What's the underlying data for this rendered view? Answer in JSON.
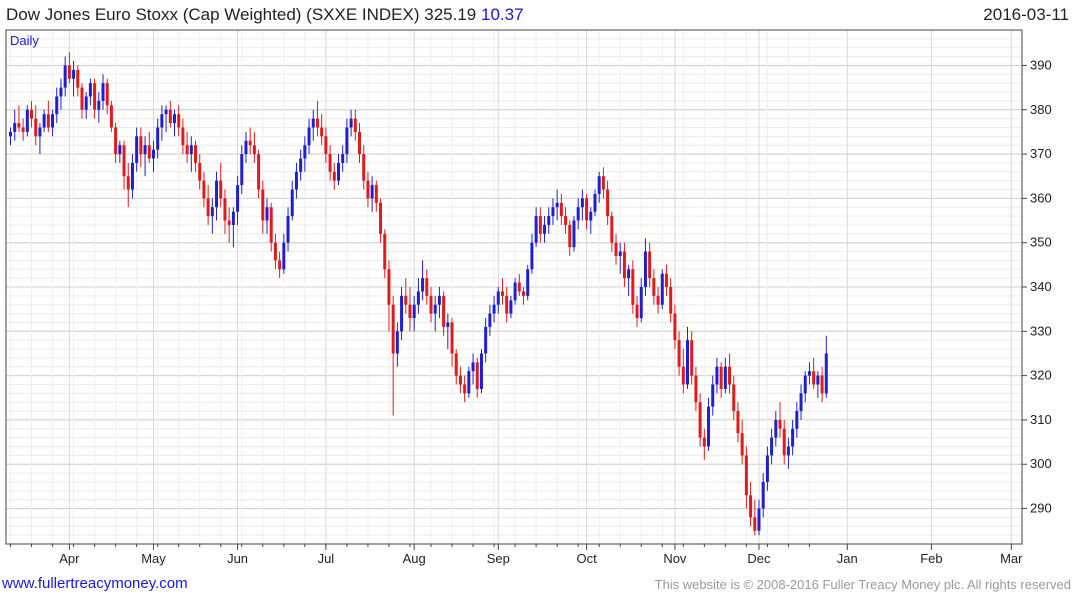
{
  "header": {
    "title": "Dow Jones Euro Stoxx (Cap Weighted)  (SXXE INDEX)",
    "last": "325.19",
    "change": "10.37",
    "date": "2016-03-11"
  },
  "footer": {
    "left": "www.fullertreacymoney.com",
    "right": "This website is © 2008-2016 Fuller Treacy Money plc. All rights reserved"
  },
  "colors": {
    "up": "#1f1fcf",
    "down": "#e01b1b",
    "grid": "#dddddd",
    "axis": "#444444"
  },
  "chart_data": {
    "type": "candlestick",
    "periodicity_label": "Daily",
    "y_ticks": [
      290,
      300,
      310,
      320,
      330,
      340,
      350,
      360,
      370,
      380,
      390
    ],
    "ylim": [
      282,
      398
    ],
    "x_axis_position": "bottom",
    "y_axis_position": "right",
    "grid": true,
    "months": [
      {
        "label": "Apr",
        "index": 14
      },
      {
        "label": "May",
        "index": 34
      },
      {
        "label": "Jun",
        "index": 54
      },
      {
        "label": "Jul",
        "index": 75
      },
      {
        "label": "Aug",
        "index": 96
      },
      {
        "label": "Sep",
        "index": 116
      },
      {
        "label": "Oct",
        "index": 137
      },
      {
        "label": "Nov",
        "index": 158
      },
      {
        "label": "Dec",
        "index": 178
      },
      {
        "label": "Jan",
        "index": 199
      },
      {
        "label": "Feb",
        "index": 219
      },
      {
        "label": "Mar",
        "index": 238
      }
    ],
    "ohlc": [
      [
        374,
        376,
        372,
        375
      ],
      [
        375,
        380,
        373,
        377
      ],
      [
        377,
        381,
        375,
        376
      ],
      [
        376,
        378,
        373,
        375
      ],
      [
        375,
        381,
        374,
        380
      ],
      [
        380,
        382,
        376,
        378
      ],
      [
        378,
        381,
        372,
        374
      ],
      [
        374,
        377,
        370,
        376
      ],
      [
        376,
        380,
        375,
        379
      ],
      [
        379,
        382,
        375,
        376
      ],
      [
        376,
        380,
        374,
        379
      ],
      [
        379,
        385,
        377,
        383
      ],
      [
        383,
        387,
        380,
        385
      ],
      [
        385,
        392,
        383,
        390
      ],
      [
        390,
        393,
        386,
        387
      ],
      [
        387,
        391,
        383,
        389
      ],
      [
        389,
        390,
        383,
        385
      ],
      [
        385,
        386,
        378,
        380
      ],
      [
        380,
        384,
        378,
        383
      ],
      [
        383,
        387,
        381,
        386
      ],
      [
        386,
        387,
        378,
        380
      ],
      [
        380,
        384,
        377,
        382
      ],
      [
        382,
        388,
        380,
        386
      ],
      [
        386,
        387,
        379,
        381
      ],
      [
        381,
        382,
        375,
        376
      ],
      [
        376,
        377,
        368,
        370
      ],
      [
        370,
        373,
        368,
        372
      ],
      [
        372,
        373,
        362,
        365
      ],
      [
        365,
        368,
        358,
        362
      ],
      [
        362,
        370,
        360,
        368
      ],
      [
        368,
        376,
        366,
        374
      ],
      [
        374,
        376,
        367,
        370
      ],
      [
        370,
        374,
        365,
        372
      ],
      [
        372,
        375,
        368,
        369
      ],
      [
        369,
        373,
        366,
        371
      ],
      [
        371,
        378,
        369,
        376
      ],
      [
        376,
        381,
        373,
        379
      ],
      [
        379,
        381,
        375,
        380
      ],
      [
        380,
        382,
        376,
        377
      ],
      [
        377,
        380,
        374,
        379
      ],
      [
        379,
        381,
        374,
        376
      ],
      [
        376,
        378,
        370,
        372
      ],
      [
        372,
        375,
        368,
        370
      ],
      [
        370,
        374,
        366,
        372
      ],
      [
        372,
        373,
        366,
        368
      ],
      [
        368,
        370,
        362,
        364
      ],
      [
        364,
        366,
        358,
        360
      ],
      [
        360,
        363,
        354,
        356
      ],
      [
        356,
        360,
        352,
        358
      ],
      [
        358,
        366,
        355,
        364
      ],
      [
        364,
        368,
        358,
        360
      ],
      [
        360,
        362,
        352,
        355
      ],
      [
        355,
        358,
        350,
        354
      ],
      [
        354,
        358,
        349,
        357
      ],
      [
        357,
        365,
        354,
        363
      ],
      [
        363,
        372,
        361,
        370
      ],
      [
        370,
        375,
        368,
        373
      ],
      [
        373,
        376,
        370,
        372
      ],
      [
        372,
        375,
        368,
        370
      ],
      [
        370,
        371,
        360,
        362
      ],
      [
        362,
        364,
        352,
        355
      ],
      [
        355,
        360,
        352,
        358
      ],
      [
        358,
        359,
        348,
        350
      ],
      [
        350,
        352,
        344,
        346
      ],
      [
        346,
        348,
        342,
        344
      ],
      [
        344,
        352,
        343,
        350
      ],
      [
        350,
        358,
        348,
        356
      ],
      [
        356,
        364,
        355,
        362
      ],
      [
        362,
        368,
        360,
        366
      ],
      [
        366,
        371,
        364,
        369
      ],
      [
        369,
        374,
        366,
        372
      ],
      [
        372,
        378,
        370,
        376
      ],
      [
        376,
        380,
        373,
        378
      ],
      [
        378,
        382,
        374,
        376
      ],
      [
        376,
        379,
        372,
        374
      ],
      [
        374,
        376,
        368,
        370
      ],
      [
        370,
        372,
        364,
        366
      ],
      [
        366,
        368,
        362,
        364
      ],
      [
        364,
        370,
        363,
        368
      ],
      [
        368,
        372,
        366,
        370
      ],
      [
        370,
        378,
        368,
        376
      ],
      [
        376,
        380,
        374,
        378
      ],
      [
        378,
        380,
        373,
        375
      ],
      [
        375,
        377,
        368,
        370
      ],
      [
        370,
        372,
        362,
        364
      ],
      [
        364,
        366,
        358,
        360
      ],
      [
        360,
        365,
        357,
        363
      ],
      [
        363,
        364,
        357,
        359
      ],
      [
        359,
        360,
        350,
        352
      ],
      [
        352,
        353,
        342,
        344
      ],
      [
        344,
        346,
        330,
        336
      ],
      [
        336,
        338,
        311,
        325
      ],
      [
        325,
        332,
        322,
        330
      ],
      [
        330,
        340,
        328,
        338
      ],
      [
        338,
        342,
        334,
        336
      ],
      [
        336,
        340,
        330,
        333
      ],
      [
        333,
        338,
        330,
        336
      ],
      [
        336,
        342,
        334,
        339
      ],
      [
        339,
        346,
        337,
        342
      ],
      [
        342,
        344,
        336,
        338
      ],
      [
        338,
        340,
        332,
        334
      ],
      [
        334,
        338,
        330,
        336
      ],
      [
        336,
        340,
        333,
        338
      ],
      [
        338,
        339,
        329,
        331
      ],
      [
        331,
        334,
        326,
        332
      ],
      [
        332,
        333,
        322,
        325
      ],
      [
        325,
        326,
        318,
        320
      ],
      [
        320,
        322,
        316,
        318
      ],
      [
        318,
        320,
        314,
        316
      ],
      [
        316,
        322,
        315,
        321
      ],
      [
        321,
        325,
        318,
        323
      ],
      [
        323,
        324,
        315,
        317
      ],
      [
        317,
        326,
        316,
        325
      ],
      [
        325,
        333,
        323,
        331
      ],
      [
        331,
        336,
        329,
        334
      ],
      [
        334,
        338,
        332,
        336
      ],
      [
        336,
        340,
        334,
        339
      ],
      [
        339,
        342,
        336,
        338
      ],
      [
        338,
        340,
        332,
        334
      ],
      [
        334,
        338,
        333,
        337
      ],
      [
        337,
        342,
        336,
        341
      ],
      [
        341,
        343,
        338,
        339
      ],
      [
        339,
        340,
        336,
        338
      ],
      [
        338,
        345,
        337,
        344
      ],
      [
        344,
        352,
        343,
        350
      ],
      [
        350,
        358,
        349,
        356
      ],
      [
        356,
        358,
        350,
        352
      ],
      [
        352,
        356,
        350,
        354
      ],
      [
        354,
        358,
        352,
        356
      ],
      [
        356,
        360,
        354,
        358
      ],
      [
        358,
        362,
        355,
        359
      ],
      [
        359,
        361,
        354,
        356
      ],
      [
        356,
        358,
        352,
        354
      ],
      [
        354,
        355,
        347,
        349
      ],
      [
        349,
        356,
        348,
        355
      ],
      [
        355,
        360,
        353,
        358
      ],
      [
        358,
        362,
        355,
        360
      ],
      [
        360,
        361,
        353,
        355
      ],
      [
        355,
        358,
        352,
        357
      ],
      [
        357,
        362,
        356,
        361
      ],
      [
        361,
        366,
        359,
        365
      ],
      [
        365,
        367,
        360,
        362
      ],
      [
        362,
        364,
        354,
        356
      ],
      [
        356,
        357,
        348,
        350
      ],
      [
        350,
        352,
        345,
        347
      ],
      [
        347,
        350,
        343,
        348
      ],
      [
        348,
        350,
        340,
        342
      ],
      [
        342,
        345,
        338,
        344
      ],
      [
        344,
        346,
        334,
        336
      ],
      [
        336,
        338,
        331,
        333
      ],
      [
        333,
        342,
        332,
        340
      ],
      [
        340,
        351,
        338,
        348
      ],
      [
        348,
        350,
        340,
        342
      ],
      [
        342,
        344,
        336,
        338
      ],
      [
        338,
        340,
        334,
        336
      ],
      [
        336,
        344,
        335,
        343
      ],
      [
        343,
        345,
        338,
        340
      ],
      [
        340,
        342,
        332,
        334
      ],
      [
        334,
        336,
        326,
        328
      ],
      [
        328,
        330,
        320,
        322
      ],
      [
        322,
        326,
        316,
        318
      ],
      [
        318,
        331,
        317,
        328
      ],
      [
        328,
        330,
        318,
        320
      ],
      [
        320,
        322,
        312,
        314
      ],
      [
        314,
        316,
        304,
        306
      ],
      [
        306,
        308,
        301,
        304
      ],
      [
        304,
        315,
        303,
        313
      ],
      [
        313,
        320,
        311,
        318
      ],
      [
        318,
        324,
        316,
        322
      ],
      [
        322,
        323,
        315,
        317
      ],
      [
        317,
        324,
        316,
        322
      ],
      [
        322,
        325,
        316,
        318
      ],
      [
        318,
        320,
        310,
        312
      ],
      [
        312,
        314,
        305,
        307
      ],
      [
        307,
        310,
        300,
        302
      ],
      [
        302,
        304,
        290,
        293
      ],
      [
        293,
        296,
        286,
        288
      ],
      [
        288,
        292,
        284,
        285
      ],
      [
        285,
        292,
        284,
        290
      ],
      [
        290,
        298,
        288,
        296
      ],
      [
        296,
        304,
        294,
        302
      ],
      [
        302,
        308,
        300,
        306
      ],
      [
        306,
        312,
        304,
        310
      ],
      [
        310,
        314,
        306,
        308
      ],
      [
        308,
        310,
        300,
        302
      ],
      [
        302,
        306,
        299,
        304
      ],
      [
        304,
        310,
        302,
        308
      ],
      [
        308,
        314,
        306,
        312
      ],
      [
        312,
        318,
        310,
        316
      ],
      [
        316,
        321,
        314,
        320
      ],
      [
        320,
        323,
        318,
        321
      ],
      [
        321,
        324,
        317,
        318
      ],
      [
        318,
        321,
        315,
        320
      ],
      [
        320,
        322,
        314,
        316
      ],
      [
        316,
        329,
        315,
        325
      ]
    ]
  }
}
